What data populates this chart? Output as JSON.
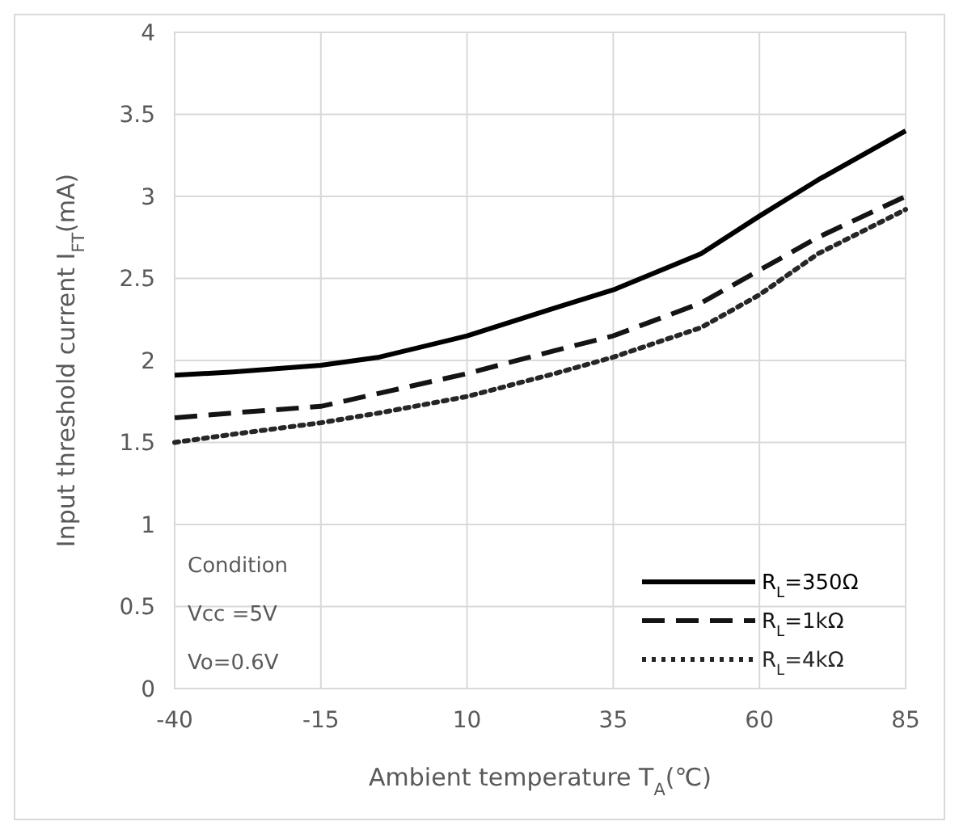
{
  "chart_data": {
    "type": "line",
    "xlabel": "Ambient temperature T$_{A}$(℃)",
    "ylabel": "Input threshold current I$_{FT}$(mA)",
    "xlim": [
      -40,
      85
    ],
    "xticks": [
      -40,
      -15,
      10,
      35,
      60,
      85
    ],
    "ylim": [
      0,
      4
    ],
    "yticks": [
      0,
      0.5,
      1,
      1.5,
      2,
      2.5,
      3,
      3.5,
      4
    ],
    "x": [
      -40,
      -30,
      -15,
      -5,
      10,
      25,
      35,
      50,
      60,
      70,
      85
    ],
    "series": [
      {
        "name": "R$_{L}$=350Ω",
        "color": "#000000",
        "line_style": "solid",
        "values": [
          1.91,
          1.93,
          1.97,
          2.02,
          2.15,
          2.32,
          2.43,
          2.65,
          2.88,
          3.1,
          3.4
        ]
      },
      {
        "name": "R$_{L}$=1kΩ",
        "color": "#141414",
        "line_style": "dashed",
        "values": [
          1.65,
          1.68,
          1.72,
          1.8,
          1.92,
          2.06,
          2.15,
          2.35,
          2.55,
          2.75,
          3.0
        ]
      },
      {
        "name": "R$_{L}$=4kΩ",
        "color": "#262626",
        "line_style": "dotted",
        "values": [
          1.5,
          1.55,
          1.62,
          1.68,
          1.78,
          1.92,
          2.02,
          2.2,
          2.4,
          2.65,
          2.92
        ]
      }
    ],
    "grid": true,
    "legend": "bottom right",
    "marker": "none",
    "annotations": [
      "Condition",
      "Vcc =5V",
      "Vo=0.6V"
    ]
  }
}
